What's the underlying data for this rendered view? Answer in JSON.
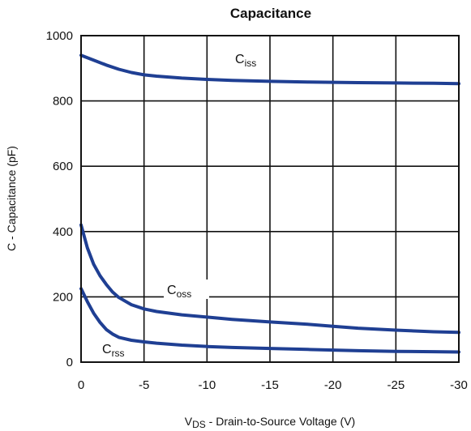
{
  "chart_data": {
    "type": "line",
    "title": "Capacitance",
    "xlabel_main": "V",
    "xlabel_sub": "DS",
    "xlabel_rest": " - Drain-to-Source Voltage (V)",
    "ylabel": "C - Capacitance (pF)",
    "xlim": [
      0,
      -30
    ],
    "ylim": [
      0,
      1000
    ],
    "x_ticks": [
      0,
      -5,
      -10,
      -15,
      -20,
      -25,
      -30
    ],
    "x_tick_labels": [
      "0",
      "-5",
      "-10",
      "-15",
      "-20",
      "-25",
      "-30"
    ],
    "y_ticks": [
      0,
      200,
      400,
      600,
      800,
      1000
    ],
    "y_tick_labels": [
      "0",
      "200",
      "400",
      "600",
      "800",
      "1000"
    ],
    "grid": true,
    "series_color": "#1f3f93",
    "series": [
      {
        "name": "Ciss",
        "label_main": "C",
        "label_sub": "iss",
        "x": [
          0,
          -1,
          -2,
          -3,
          -4,
          -5,
          -6,
          -8,
          -10,
          -12,
          -15,
          -18,
          -20,
          -22,
          -25,
          -28,
          -30
        ],
        "y": [
          940,
          925,
          910,
          897,
          887,
          880,
          876,
          870,
          866,
          863,
          860,
          858,
          857,
          856,
          855,
          854,
          853
        ]
      },
      {
        "name": "Coss",
        "label_main": "C",
        "label_sub": "oss",
        "x": [
          0,
          -0.5,
          -1,
          -1.5,
          -2,
          -2.5,
          -3,
          -4,
          -5,
          -6,
          -8,
          -10,
          -12,
          -15,
          -18,
          -20,
          -22,
          -25,
          -28,
          -30
        ],
        "y": [
          420,
          350,
          300,
          265,
          238,
          215,
          198,
          176,
          163,
          155,
          145,
          138,
          131,
          123,
          116,
          110,
          104,
          98,
          93,
          91
        ]
      },
      {
        "name": "Crss",
        "label_main": "C",
        "label_sub": "rss",
        "x": [
          0,
          -0.5,
          -1,
          -1.5,
          -2,
          -2.5,
          -3,
          -4,
          -5,
          -6,
          -8,
          -10,
          -12,
          -15,
          -18,
          -20,
          -22,
          -25,
          -28,
          -30
        ],
        "y": [
          225,
          185,
          150,
          122,
          100,
          86,
          76,
          67,
          62,
          58,
          52,
          48,
          45,
          42,
          39,
          37,
          35,
          33,
          32,
          31
        ]
      }
    ]
  }
}
